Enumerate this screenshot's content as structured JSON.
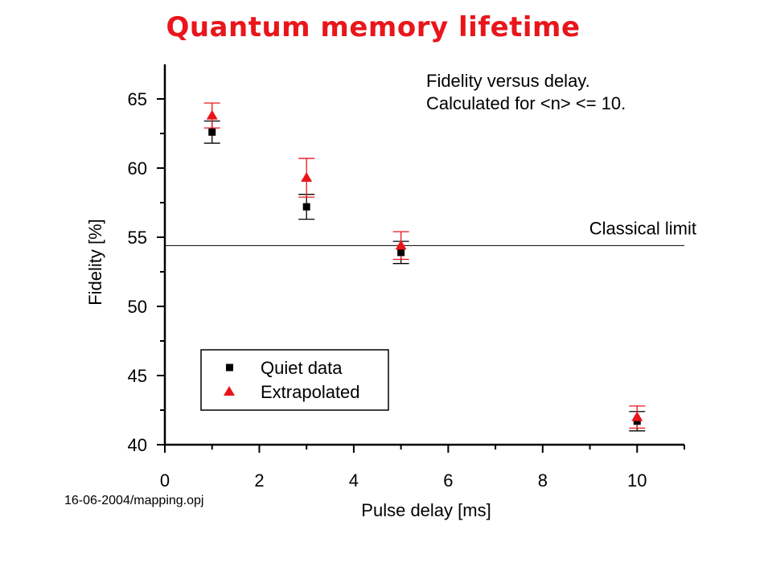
{
  "page": {
    "title": "Quantum memory lifetime",
    "file_note": "16-06-2004/mapping.opj"
  },
  "chart_data": {
    "type": "scatter",
    "title": "Quantum memory lifetime",
    "xlabel": "Pulse delay [ms]",
    "ylabel": "Fidelity [%]",
    "xlim": [
      0,
      11
    ],
    "ylim": [
      40,
      67.5
    ],
    "x_ticks": [
      0,
      2,
      4,
      6,
      8,
      10
    ],
    "y_ticks": [
      40,
      45,
      50,
      55,
      60,
      65
    ],
    "grid": false,
    "legend_position": "bottom-left",
    "annotations": [
      "Fidelity versus delay.",
      "Calculated for <n> <= 10."
    ],
    "classical_limit": {
      "label": "Classical limit",
      "value": 54.4
    },
    "series": [
      {
        "name": "Quiet data",
        "marker": "square",
        "color": "#000000",
        "points": [
          {
            "x": 1,
            "y": 62.6,
            "err": 0.8
          },
          {
            "x": 3,
            "y": 57.2,
            "err": 0.9
          },
          {
            "x": 5,
            "y": 53.9,
            "err": 0.8
          },
          {
            "x": 10,
            "y": 41.7,
            "err": 0.7
          }
        ]
      },
      {
        "name": "Extrapolated",
        "marker": "triangle",
        "color": "#e8161b",
        "points": [
          {
            "x": 1,
            "y": 63.8,
            "err": 0.9
          },
          {
            "x": 3,
            "y": 59.3,
            "err": 1.4
          },
          {
            "x": 5,
            "y": 54.4,
            "err": 1.0
          },
          {
            "x": 10,
            "y": 42.0,
            "err": 0.8
          }
        ]
      }
    ]
  }
}
